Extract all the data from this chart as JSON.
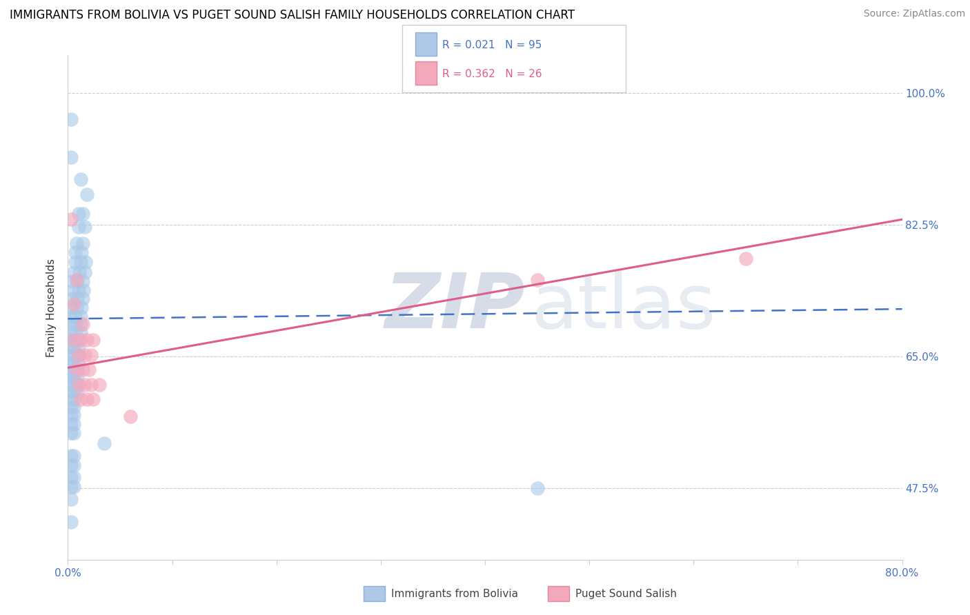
{
  "title": "IMMIGRANTS FROM BOLIVIA VS PUGET SOUND SALISH FAMILY HOUSEHOLDS CORRELATION CHART",
  "source": "Source: ZipAtlas.com",
  "ylabel": "Family Households",
  "yticks": [
    "47.5%",
    "65.0%",
    "82.5%",
    "100.0%"
  ],
  "ytick_vals": [
    0.475,
    0.65,
    0.825,
    1.0
  ],
  "xlim": [
    0.0,
    0.8
  ],
  "ylim": [
    0.38,
    1.05
  ],
  "legend_r1": "R = 0.021",
  "legend_n1": "N = 95",
  "legend_r2": "R = 0.362",
  "legend_n2": "N = 26",
  "blue_color": "#a8c8e8",
  "pink_color": "#f4a8bc",
  "blue_line_color": "#4472c4",
  "pink_line_color": "#e05c8a",
  "title_fontsize": 12,
  "source_fontsize": 10,
  "blue_scatter": [
    [
      0.003,
      0.965
    ],
    [
      0.003,
      0.915
    ],
    [
      0.012,
      0.885
    ],
    [
      0.018,
      0.865
    ],
    [
      0.01,
      0.84
    ],
    [
      0.014,
      0.84
    ],
    [
      0.01,
      0.822
    ],
    [
      0.016,
      0.822
    ],
    [
      0.008,
      0.8
    ],
    [
      0.014,
      0.8
    ],
    [
      0.007,
      0.788
    ],
    [
      0.013,
      0.788
    ],
    [
      0.007,
      0.775
    ],
    [
      0.012,
      0.775
    ],
    [
      0.017,
      0.775
    ],
    [
      0.006,
      0.762
    ],
    [
      0.011,
      0.762
    ],
    [
      0.016,
      0.762
    ],
    [
      0.004,
      0.75
    ],
    [
      0.009,
      0.75
    ],
    [
      0.014,
      0.75
    ],
    [
      0.005,
      0.738
    ],
    [
      0.01,
      0.738
    ],
    [
      0.015,
      0.738
    ],
    [
      0.004,
      0.727
    ],
    [
      0.009,
      0.727
    ],
    [
      0.014,
      0.727
    ],
    [
      0.003,
      0.715
    ],
    [
      0.008,
      0.715
    ],
    [
      0.013,
      0.715
    ],
    [
      0.003,
      0.703
    ],
    [
      0.007,
      0.703
    ],
    [
      0.012,
      0.703
    ],
    [
      0.003,
      0.693
    ],
    [
      0.007,
      0.693
    ],
    [
      0.012,
      0.693
    ],
    [
      0.003,
      0.682
    ],
    [
      0.007,
      0.682
    ],
    [
      0.012,
      0.682
    ],
    [
      0.003,
      0.672
    ],
    [
      0.006,
      0.672
    ],
    [
      0.01,
      0.672
    ],
    [
      0.003,
      0.662
    ],
    [
      0.006,
      0.662
    ],
    [
      0.01,
      0.662
    ],
    [
      0.003,
      0.652
    ],
    [
      0.006,
      0.652
    ],
    [
      0.01,
      0.652
    ],
    [
      0.003,
      0.642
    ],
    [
      0.006,
      0.642
    ],
    [
      0.01,
      0.642
    ],
    [
      0.003,
      0.632
    ],
    [
      0.006,
      0.632
    ],
    [
      0.009,
      0.632
    ],
    [
      0.003,
      0.623
    ],
    [
      0.006,
      0.623
    ],
    [
      0.009,
      0.623
    ],
    [
      0.003,
      0.613
    ],
    [
      0.006,
      0.613
    ],
    [
      0.009,
      0.613
    ],
    [
      0.003,
      0.603
    ],
    [
      0.006,
      0.603
    ],
    [
      0.009,
      0.603
    ],
    [
      0.003,
      0.593
    ],
    [
      0.006,
      0.593
    ],
    [
      0.003,
      0.583
    ],
    [
      0.006,
      0.583
    ],
    [
      0.003,
      0.572
    ],
    [
      0.006,
      0.572
    ],
    [
      0.003,
      0.56
    ],
    [
      0.006,
      0.56
    ],
    [
      0.003,
      0.548
    ],
    [
      0.006,
      0.548
    ],
    [
      0.035,
      0.535
    ],
    [
      0.003,
      0.518
    ],
    [
      0.006,
      0.518
    ],
    [
      0.003,
      0.505
    ],
    [
      0.006,
      0.505
    ],
    [
      0.003,
      0.49
    ],
    [
      0.006,
      0.49
    ],
    [
      0.003,
      0.477
    ],
    [
      0.006,
      0.477
    ],
    [
      0.45,
      0.475
    ],
    [
      0.003,
      0.46
    ],
    [
      0.003,
      0.43
    ]
  ],
  "pink_scatter": [
    [
      0.003,
      0.832
    ],
    [
      0.008,
      0.752
    ],
    [
      0.006,
      0.72
    ],
    [
      0.014,
      0.693
    ],
    [
      0.006,
      0.672
    ],
    [
      0.012,
      0.672
    ],
    [
      0.018,
      0.672
    ],
    [
      0.024,
      0.672
    ],
    [
      0.01,
      0.652
    ],
    [
      0.016,
      0.652
    ],
    [
      0.022,
      0.652
    ],
    [
      0.008,
      0.633
    ],
    [
      0.014,
      0.633
    ],
    [
      0.02,
      0.633
    ],
    [
      0.01,
      0.612
    ],
    [
      0.016,
      0.612
    ],
    [
      0.022,
      0.612
    ],
    [
      0.012,
      0.593
    ],
    [
      0.018,
      0.593
    ],
    [
      0.024,
      0.593
    ],
    [
      0.06,
      0.57
    ],
    [
      0.03,
      0.612
    ],
    [
      0.45,
      0.752
    ],
    [
      0.65,
      0.78
    ]
  ],
  "blue_line_x": [
    0.0,
    0.8
  ],
  "blue_line_y": [
    0.7,
    0.713
  ],
  "pink_line_x": [
    0.0,
    0.8
  ],
  "pink_line_y": [
    0.635,
    0.832
  ]
}
